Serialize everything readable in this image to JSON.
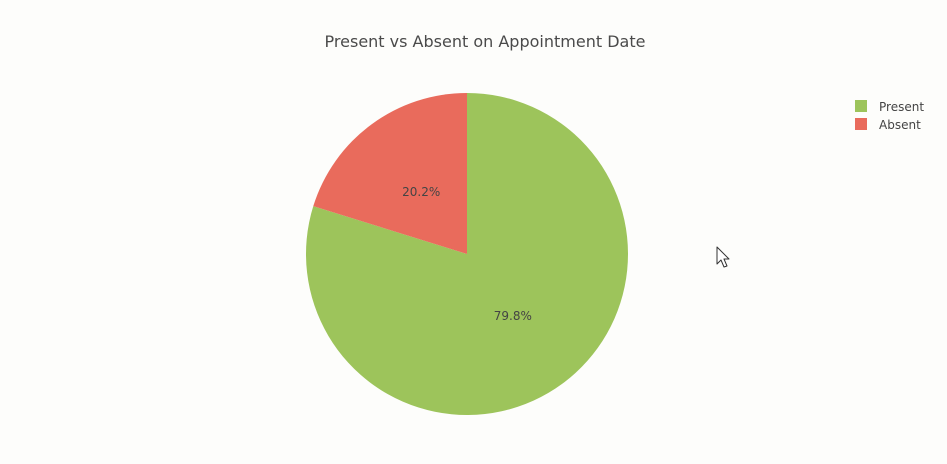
{
  "chart_data": {
    "type": "pie",
    "title": "Present vs Absent on Appointment Date",
    "labels": [
      "Present",
      "Absent"
    ],
    "values": [
      79.8,
      20.2
    ],
    "value_labels": [
      "79.8%",
      "20.2%"
    ],
    "colors": [
      "#9dc45b",
      "#e96b5c"
    ],
    "legend_position": "top-right"
  },
  "cursor": {
    "icon": "mouse-pointer-icon"
  }
}
